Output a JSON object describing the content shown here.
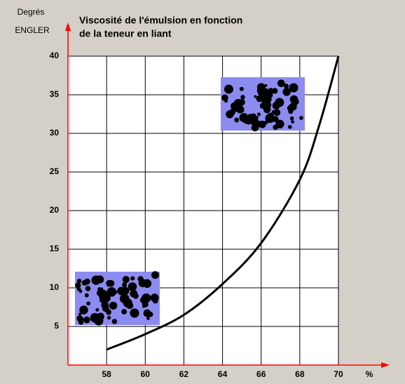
{
  "chart_data": {
    "type": "line",
    "title": [
      "Viscosité de l'émulsion en fonction",
      "de la teneur en liant"
    ],
    "y_label": [
      "Degrés",
      "ENGLER"
    ],
    "x_label": "%",
    "x": [
      58,
      60,
      62,
      64,
      66,
      68,
      69,
      70
    ],
    "values": [
      2,
      4,
      6.5,
      10.5,
      15.8,
      24,
      31,
      40
    ],
    "color": "#000000",
    "axis_color": "#ff0000",
    "xlim": [
      56,
      70
    ],
    "xticks": [
      58,
      60,
      62,
      64,
      66,
      68,
      70
    ],
    "ylim": [
      0,
      40
    ],
    "yticks": [
      5,
      10,
      15,
      20,
      25,
      30,
      35,
      40
    ],
    "grid": true
  }
}
